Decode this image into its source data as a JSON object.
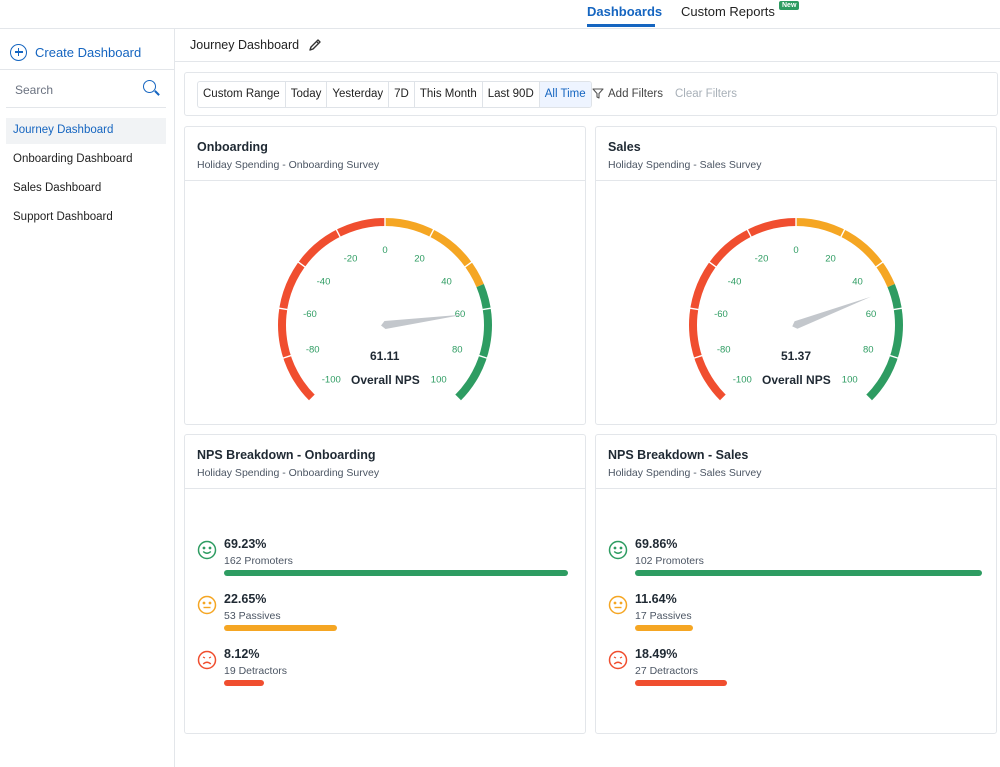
{
  "topnav": {
    "tab_dashboards": "Dashboards",
    "tab_custom_reports": "Custom Reports",
    "badge": "New"
  },
  "sidebar": {
    "create_label": "Create Dashboard",
    "search_placeholder": "Search",
    "items": [
      {
        "label": "Journey Dashboard",
        "active": true
      },
      {
        "label": "Onboarding Dashboard",
        "active": false
      },
      {
        "label": "Sales Dashboard",
        "active": false
      },
      {
        "label": "Support Dashboard",
        "active": false
      }
    ]
  },
  "header": {
    "title": "Journey Dashboard"
  },
  "filters": {
    "ranges": [
      "Custom Range",
      "Today",
      "Yesterday",
      "7D",
      "This Month",
      "Last 90D",
      "All Time"
    ],
    "selected": "All Time",
    "add_filters": "Add Filters",
    "clear_filters": "Clear Filters"
  },
  "colors": {
    "accent": "#1565c0",
    "red": "#f04e2f",
    "orange": "#f5a623",
    "green": "#2e9c62"
  },
  "gauges": [
    {
      "title": "Onboarding",
      "subtitle": "Holiday Spending - Onboarding Survey",
      "value": 61.11,
      "value_text": "61.11",
      "label": "Overall NPS",
      "ticks": [
        "-100",
        "-80",
        "-60",
        "-40",
        "-20",
        "0",
        "20",
        "40",
        "60",
        "80",
        "100"
      ]
    },
    {
      "title": "Sales",
      "subtitle": "Holiday Spending - Sales Survey",
      "value": 51.37,
      "value_text": "51.37",
      "label": "Overall NPS",
      "ticks": [
        "-100",
        "-80",
        "-60",
        "-40",
        "-20",
        "0",
        "20",
        "40",
        "60",
        "80",
        "100"
      ]
    }
  ],
  "breakdowns": [
    {
      "title": "NPS Breakdown - Onboarding",
      "subtitle": "Holiday Spending - Onboarding Survey",
      "rows": [
        {
          "pct": "69.23%",
          "count": "162 Promoters",
          "fraction": 0.6923,
          "icon": "smile-icon",
          "color": "#2e9c62"
        },
        {
          "pct": "22.65%",
          "count": "53 Passives",
          "fraction": 0.2265,
          "icon": "neutral-face-icon",
          "color": "#f5a623"
        },
        {
          "pct": "8.12%",
          "count": "19 Detractors",
          "fraction": 0.0812,
          "icon": "frown-icon",
          "color": "#f04e2f"
        }
      ]
    },
    {
      "title": "NPS Breakdown - Sales",
      "subtitle": "Holiday Spending - Sales Survey",
      "rows": [
        {
          "pct": "69.86%",
          "count": "102 Promoters",
          "fraction": 0.6986,
          "icon": "smile-icon",
          "color": "#2e9c62"
        },
        {
          "pct": "11.64%",
          "count": "17 Passives",
          "fraction": 0.1164,
          "icon": "neutral-face-icon",
          "color": "#f5a623"
        },
        {
          "pct": "18.49%",
          "count": "27 Detractors",
          "fraction": 0.1849,
          "icon": "frown-icon",
          "color": "#f04e2f"
        }
      ]
    }
  ]
}
